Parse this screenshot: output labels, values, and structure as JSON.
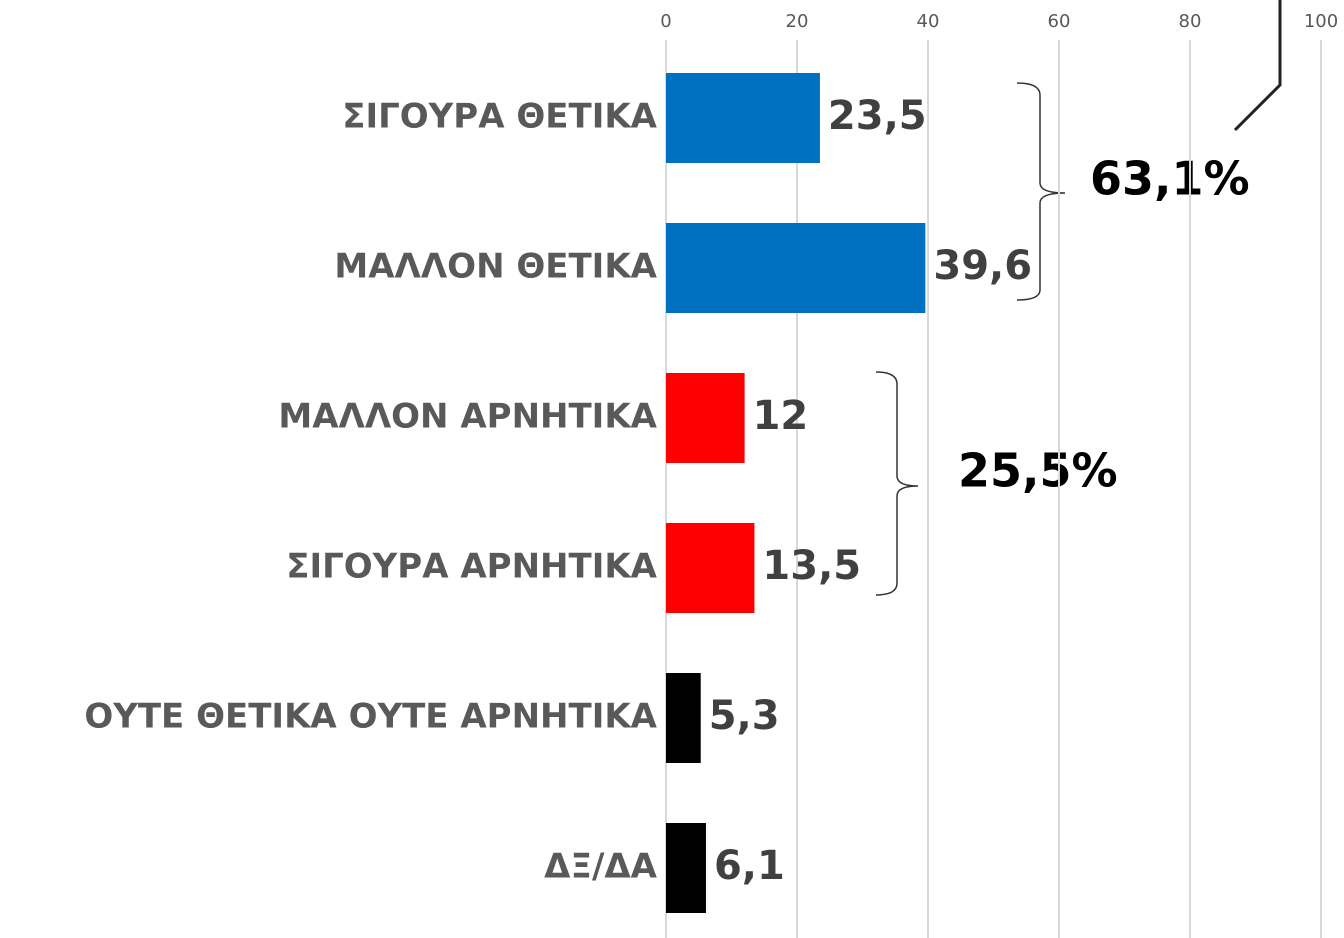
{
  "chart_data": {
    "type": "bar",
    "orientation": "horizontal",
    "categories": [
      "ΣΙΓΟΥΡΑ ΘΕΤΙΚΑ",
      "ΜΑΛΛΟΝ ΘΕΤΙΚΑ",
      "ΜΑΛΛΟΝ ΑΡΝΗΤΙΚΑ",
      "ΣΙΓΟΥΡΑ ΑΡΝΗΤΙΚΑ",
      "ΟΥΤΕ ΘΕΤΙΚΑ ΟΥΤΕ ΑΡΝΗΤΙΚΑ",
      "ΔΞ/ΔΑ"
    ],
    "values": [
      23.5,
      39.6,
      12,
      13.5,
      5.3,
      6.1
    ],
    "value_labels": [
      "23,5",
      "39,6",
      "12",
      "13,5",
      "5,3",
      "6,1"
    ],
    "colors": [
      "#0070c0",
      "#0070c0",
      "#ff0000",
      "#ff0000",
      "#000000",
      "#000000"
    ],
    "xlim": [
      0,
      100
    ],
    "xticks": [
      0,
      20,
      40,
      60,
      80,
      100
    ],
    "grid": true,
    "annotations": [
      "63,1%",
      "25,5%"
    ]
  }
}
